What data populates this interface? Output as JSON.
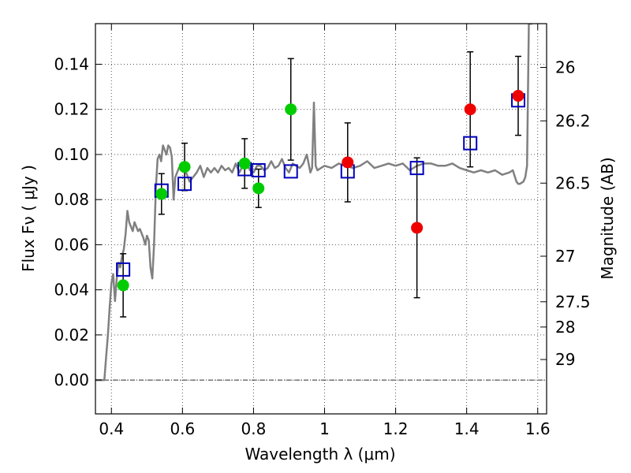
{
  "chart_data": {
    "type": "scatter",
    "title": "",
    "xlabel": "Wavelength  λ (μm)",
    "ylabel": "Flux  Fν  ( μJy )",
    "y2label": "Magnitude (AB)",
    "xlim": [
      0.355,
      1.625
    ],
    "ylim": [
      -0.015,
      0.158
    ],
    "grid": true,
    "legend": "none",
    "x_ticks": [
      0.4,
      0.6,
      0.8,
      1.0,
      1.2,
      1.4,
      1.6
    ],
    "x_tick_labels": [
      "0.4",
      "0.6",
      "0.8",
      "1",
      "1.2",
      "1.4",
      "1.6"
    ],
    "y_ticks": [
      0.0,
      0.02,
      0.04,
      0.06,
      0.08,
      0.1,
      0.12,
      0.14
    ],
    "y_tick_labels": [
      "0.00",
      "0.02",
      "0.04",
      "0.06",
      "0.08",
      "0.10",
      "0.12",
      "0.14"
    ],
    "y2_ticks": [
      {
        "flux": 0.1386,
        "label": "26"
      },
      {
        "flux": 0.1149,
        "label": "26.2"
      },
      {
        "flux": 0.0873,
        "label": "26.5"
      },
      {
        "flux": 0.0549,
        "label": "27"
      },
      {
        "flux": 0.0347,
        "label": "27.5"
      },
      {
        "flux": 0.0235,
        "label": "28"
      },
      {
        "flux": 0.0091,
        "label": "29"
      }
    ],
    "colors": {
      "model": "#808080",
      "model_points": "#0000bb",
      "green_points": "#00cc00",
      "red_points": "#ee0000",
      "errorbar": "#000000",
      "grid": "#555555"
    },
    "series": [
      {
        "name": "model spectrum",
        "style": "line",
        "x": [
          0.355,
          0.38,
          0.385,
          0.39,
          0.395,
          0.4,
          0.405,
          0.41,
          0.415,
          0.42,
          0.425,
          0.43,
          0.435,
          0.44,
          0.445,
          0.45,
          0.455,
          0.46,
          0.465,
          0.47,
          0.475,
          0.48,
          0.485,
          0.49,
          0.495,
          0.5,
          0.505,
          0.51,
          0.515,
          0.52,
          0.525,
          0.53,
          0.535,
          0.54,
          0.545,
          0.55,
          0.555,
          0.56,
          0.565,
          0.57,
          0.575,
          0.58,
          0.59,
          0.6,
          0.61,
          0.62,
          0.63,
          0.64,
          0.65,
          0.66,
          0.67,
          0.68,
          0.69,
          0.7,
          0.71,
          0.72,
          0.73,
          0.74,
          0.75,
          0.76,
          0.77,
          0.78,
          0.79,
          0.8,
          0.81,
          0.82,
          0.83,
          0.84,
          0.85,
          0.86,
          0.87,
          0.88,
          0.89,
          0.9,
          0.91,
          0.92,
          0.93,
          0.94,
          0.95,
          0.96,
          0.965,
          0.97,
          0.975,
          0.98,
          0.99,
          1.0,
          1.02,
          1.04,
          1.06,
          1.08,
          1.1,
          1.12,
          1.14,
          1.16,
          1.18,
          1.2,
          1.22,
          1.24,
          1.26,
          1.28,
          1.3,
          1.32,
          1.34,
          1.36,
          1.38,
          1.4,
          1.42,
          1.44,
          1.46,
          1.48,
          1.5,
          1.52,
          1.53,
          1.54,
          1.545,
          1.55,
          1.56,
          1.565,
          1.57,
          1.575,
          1.58,
          1.585
        ],
        "values": [
          0.0,
          0.0,
          0.01,
          0.02,
          0.032,
          0.043,
          0.047,
          0.035,
          0.045,
          0.052,
          0.05,
          0.055,
          0.058,
          0.065,
          0.075,
          0.07,
          0.068,
          0.066,
          0.07,
          0.068,
          0.066,
          0.067,
          0.065,
          0.063,
          0.06,
          0.064,
          0.062,
          0.05,
          0.045,
          0.06,
          0.085,
          0.098,
          0.1,
          0.097,
          0.104,
          0.102,
          0.1,
          0.104,
          0.103,
          0.099,
          0.08,
          0.09,
          0.094,
          0.096,
          0.092,
          0.088,
          0.09,
          0.092,
          0.095,
          0.09,
          0.094,
          0.092,
          0.094,
          0.092,
          0.095,
          0.093,
          0.094,
          0.092,
          0.096,
          0.092,
          0.095,
          0.097,
          0.093,
          0.092,
          0.095,
          0.095,
          0.093,
          0.094,
          0.097,
          0.094,
          0.095,
          0.098,
          0.094,
          0.092,
          0.096,
          0.095,
          0.094,
          0.096,
          0.1,
          0.092,
          0.094,
          0.123,
          0.095,
          0.093,
          0.094,
          0.095,
          0.094,
          0.096,
          0.095,
          0.094,
          0.095,
          0.097,
          0.094,
          0.095,
          0.096,
          0.095,
          0.096,
          0.093,
          0.095,
          0.096,
          0.096,
          0.095,
          0.095,
          0.096,
          0.094,
          0.093,
          0.092,
          0.093,
          0.092,
          0.093,
          0.091,
          0.092,
          0.093,
          0.088,
          0.087,
          0.087,
          0.088,
          0.09,
          0.095,
          0.158,
          0.158,
          0.158
        ]
      },
      {
        "name": "model photometry",
        "style": "open-square",
        "x": [
          0.433,
          0.541,
          0.606,
          0.775,
          0.814,
          0.905,
          1.065,
          1.26,
          1.41,
          1.545
        ],
        "values": [
          0.049,
          0.084,
          0.087,
          0.0935,
          0.093,
          0.0925,
          0.0925,
          0.094,
          0.105,
          0.124
        ]
      },
      {
        "name": "observed (optical)",
        "style": "filled-circle",
        "color": "#00cc00",
        "x": [
          0.433,
          0.541,
          0.606,
          0.775,
          0.814,
          0.905
        ],
        "values": [
          0.042,
          0.0825,
          0.0945,
          0.096,
          0.085,
          0.12
        ],
        "err": [
          0.014,
          0.009,
          0.0105,
          0.011,
          0.0085,
          0.0225
        ]
      },
      {
        "name": "observed (near-IR)",
        "style": "filled-circle",
        "color": "#ee0000",
        "x": [
          1.065,
          1.26,
          1.41,
          1.545
        ],
        "values": [
          0.0965,
          0.0675,
          0.12,
          0.126
        ],
        "err": [
          0.0175,
          0.031,
          0.0255,
          0.0175
        ]
      }
    ]
  }
}
